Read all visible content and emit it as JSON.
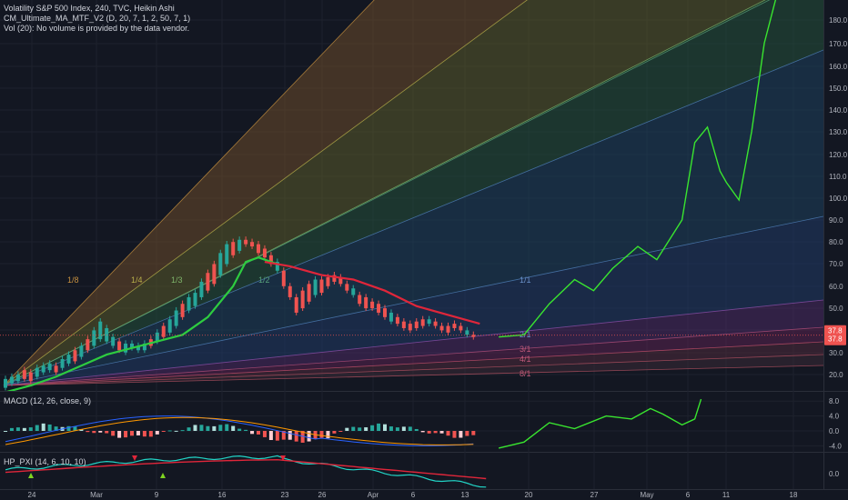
{
  "header": {
    "title_line": "Volatility S&P 500 Index, 240, TVC, Heikin Ashi",
    "ma_line": "CM_Ultimate_MA_MTF_V2 (D, 20, 7, 1, 2, 50, 7, 1)",
    "vol_line": "Vol (20): No volume is provided by the data vendor."
  },
  "macd_label": "MACD (12, 26, close, 9)",
  "pxi_label": "HP_PXI (14, 6, 10, 10)",
  "colors": {
    "background": "#131722",
    "bull_candle": "#26a69a",
    "bear_candle": "#ef5350",
    "ma_green": "#2ecc40",
    "ma_red": "#e0263a",
    "drawn_projection": "#39e52f",
    "price_tag": "#ef5350"
  },
  "chart_data": [
    {
      "type": "candlestick",
      "title": "Volatility S&P 500 Index, 240, TVC, Heikin Ashi",
      "x_ticks": [
        "24",
        "Mar",
        "9",
        "16",
        "23",
        "26",
        "Apr",
        "6",
        "13",
        "20",
        "27",
        "May",
        "6",
        "11",
        "18"
      ],
      "y_ticks": [
        20.0,
        30.0,
        40.0,
        50.0,
        60.0,
        70.0,
        80.0,
        90.0,
        100.0,
        110.0,
        120.0,
        130.0,
        140.0,
        150.0,
        160.0,
        170.0,
        180.0
      ],
      "ylim": [
        11,
        192
      ],
      "last_price": {
        "value": 37.8,
        "lines": [
          "37.8",
          "37.8"
        ]
      },
      "fan_labels": [
        "1/8",
        "1/4",
        "1/3",
        "1/2",
        "1/1",
        "2/1",
        "3/1",
        "4/1",
        "8/1"
      ],
      "heikin_ashi_candles": [
        [
          14,
          18
        ],
        [
          16,
          19
        ],
        [
          17,
          20
        ],
        [
          18,
          22
        ],
        [
          17,
          21
        ],
        [
          19,
          23
        ],
        [
          21,
          24
        ],
        [
          22,
          25
        ],
        [
          21,
          24
        ],
        [
          23,
          27
        ],
        [
          25,
          29
        ],
        [
          26,
          31
        ],
        [
          28,
          33
        ],
        [
          31,
          36
        ],
        [
          33,
          40
        ],
        [
          36,
          44
        ],
        [
          35,
          41
        ],
        [
          33,
          37
        ],
        [
          31,
          35
        ],
        [
          30,
          34
        ],
        [
          32,
          34
        ],
        [
          31,
          33
        ],
        [
          31,
          34
        ],
        [
          33,
          36
        ],
        [
          35,
          39
        ],
        [
          37,
          42
        ],
        [
          39,
          45
        ],
        [
          42,
          49
        ],
        [
          46,
          52
        ],
        [
          49,
          55
        ],
        [
          51,
          57
        ],
        [
          55,
          62
        ],
        [
          58,
          66
        ],
        [
          61,
          70
        ],
        [
          65,
          75
        ],
        [
          70,
          79
        ],
        [
          74,
          80
        ],
        [
          76,
          81
        ],
        [
          79,
          81
        ],
        [
          78,
          80
        ],
        [
          75,
          79
        ],
        [
          73,
          77
        ],
        [
          70,
          74
        ],
        [
          67,
          71
        ],
        [
          60,
          67
        ],
        [
          55,
          60
        ],
        [
          48,
          55
        ],
        [
          50,
          58
        ],
        [
          53,
          61
        ],
        [
          56,
          63
        ],
        [
          57,
          63
        ],
        [
          60,
          64
        ],
        [
          62,
          65
        ],
        [
          61,
          64
        ],
        [
          58,
          61
        ],
        [
          56,
          59
        ],
        [
          52,
          56
        ],
        [
          50,
          55
        ],
        [
          50,
          53
        ],
        [
          48,
          52
        ],
        [
          46,
          50
        ],
        [
          44,
          48
        ],
        [
          43,
          46
        ],
        [
          41,
          44
        ],
        [
          40,
          43
        ],
        [
          41,
          44
        ],
        [
          42,
          45
        ],
        [
          43,
          45
        ],
        [
          42,
          44
        ],
        [
          40,
          42
        ],
        [
          39,
          42
        ],
        [
          41,
          43
        ],
        [
          40,
          42
        ],
        [
          38,
          40
        ],
        [
          37,
          38
        ]
      ],
      "series": [
        {
          "name": "CM_Ultimate_MA_MTF_V2 (green)",
          "points": [
            [
              0,
              12
            ],
            [
              4,
              15
            ],
            [
              8,
              19
            ],
            [
              12,
              24
            ],
            [
              16,
              29
            ],
            [
              20,
              32
            ],
            [
              24,
              35
            ],
            [
              28,
              38
            ],
            [
              32,
              46
            ],
            [
              36,
              60
            ],
            [
              38,
              71
            ],
            [
              40,
              73
            ],
            [
              43,
              70
            ]
          ]
        },
        {
          "name": "CM_Ultimate_MA_MTF_V2 (red)",
          "points": [
            [
              41,
              71
            ],
            [
              45,
              69
            ],
            [
              50,
              65
            ],
            [
              55,
              63
            ],
            [
              60,
              58
            ],
            [
              65,
              51
            ],
            [
              70,
              47
            ],
            [
              75,
              43
            ]
          ]
        }
      ],
      "drawn_projection": [
        [
          78,
          37
        ],
        [
          82,
          38
        ],
        [
          86,
          52
        ],
        [
          90,
          63
        ],
        [
          93,
          58
        ],
        [
          96,
          68
        ],
        [
          100,
          78
        ],
        [
          103,
          72
        ],
        [
          107,
          90
        ],
        [
          109,
          125
        ],
        [
          111,
          132
        ],
        [
          113,
          112
        ],
        [
          114,
          107
        ],
        [
          116,
          99
        ],
        [
          118,
          130
        ],
        [
          120,
          170
        ],
        [
          122,
          192
        ]
      ]
    },
    {
      "type": "bar",
      "title": "MACD (12, 26, close, 9)",
      "y_ticks": [
        8.0,
        4.0,
        0.0,
        -4.0
      ],
      "ylim": [
        -5.5,
        9.5
      ]
    },
    {
      "type": "line",
      "title": "HP_PXI (14, 6, 10, 10)",
      "y_ticks": [
        0.0
      ],
      "ylim": [
        -1.2,
        1.5
      ]
    }
  ]
}
